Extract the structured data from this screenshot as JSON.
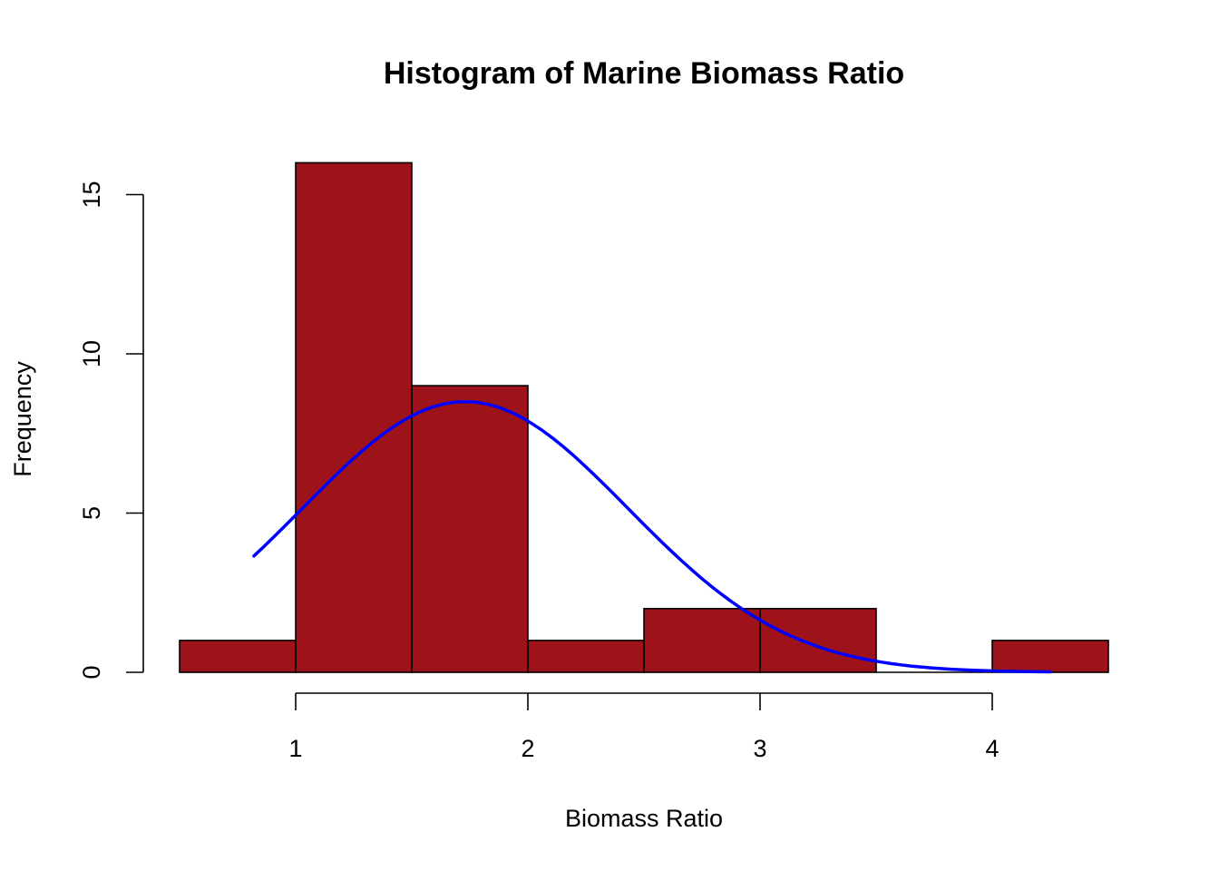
{
  "chart_data": {
    "type": "bar",
    "title": "Histogram of Marine Biomass Ratio",
    "xlabel": "Biomass Ratio",
    "ylabel": "Frequency",
    "bins": [
      {
        "start": 0.5,
        "end": 1.0,
        "count": 1
      },
      {
        "start": 1.0,
        "end": 1.5,
        "count": 16
      },
      {
        "start": 1.5,
        "end": 2.0,
        "count": 9
      },
      {
        "start": 2.0,
        "end": 2.5,
        "count": 1
      },
      {
        "start": 2.5,
        "end": 3.0,
        "count": 2
      },
      {
        "start": 3.0,
        "end": 3.5,
        "count": 2
      },
      {
        "start": 3.5,
        "end": 4.0,
        "count": 0
      },
      {
        "start": 4.0,
        "end": 4.5,
        "count": 1
      }
    ],
    "x_ticks": [
      1,
      2,
      3,
      4
    ],
    "y_ticks": [
      0,
      5,
      10,
      15
    ],
    "xlim": [
      0.5,
      4.5
    ],
    "ylim": [
      0,
      16
    ],
    "bar_color": "#9E1219",
    "bar_border_color": "#000000",
    "curve": {
      "color": "#0000FF",
      "x_range": [
        0.82,
        4.25
      ],
      "peak_x": 1.73,
      "peak_y": 8.5
    },
    "grid": false
  }
}
